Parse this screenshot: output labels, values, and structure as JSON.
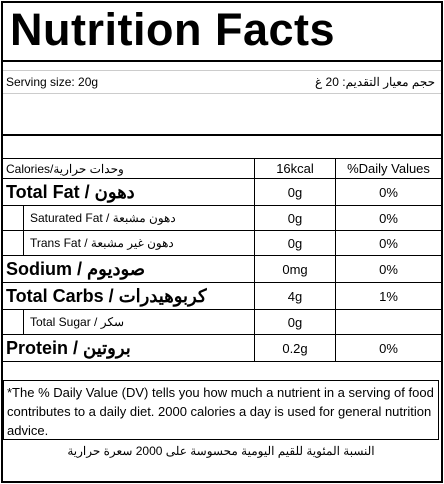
{
  "title": "Nutrition Facts",
  "serving": {
    "en": "Serving size: 20g",
    "ar": "حجم معيار التقديم: 20 غ"
  },
  "table": {
    "header": [
      "Calories/وحدات حرارية",
      "16kcal",
      "%Daily Values"
    ],
    "rows": [
      {
        "label": "Total Fat / دهون",
        "amount": "0g",
        "dv": "0%"
      },
      {
        "label": "Saturated Fat / دهون مشبعة",
        "amount": "0g",
        "dv": "0%"
      },
      {
        "label": "Trans Fat / دهون غير مشبعة",
        "amount": "0g",
        "dv": "0%"
      },
      {
        "label": "Sodium / صوديوم",
        "amount": "0mg",
        "dv": "0%"
      },
      {
        "label": "Total Carbs / كربوهيدرات",
        "amount": "4g",
        "dv": "1%"
      },
      {
        "label": "Total Sugar / سكر",
        "amount": "0g"
      },
      {
        "label": "Protein / بروتين",
        "amount": "0.2g",
        "dv": "0%"
      }
    ]
  },
  "footnote": {
    "en": "*The % Daily Value (DV) tells you how much a nutrient in a serving of food contributes to a daily diet. 2000 calories a day is used for general nutrition advice.",
    "ar": "النسبة المئوية للقيم اليومية محسوسة على 2000 سعرة حرارية"
  }
}
